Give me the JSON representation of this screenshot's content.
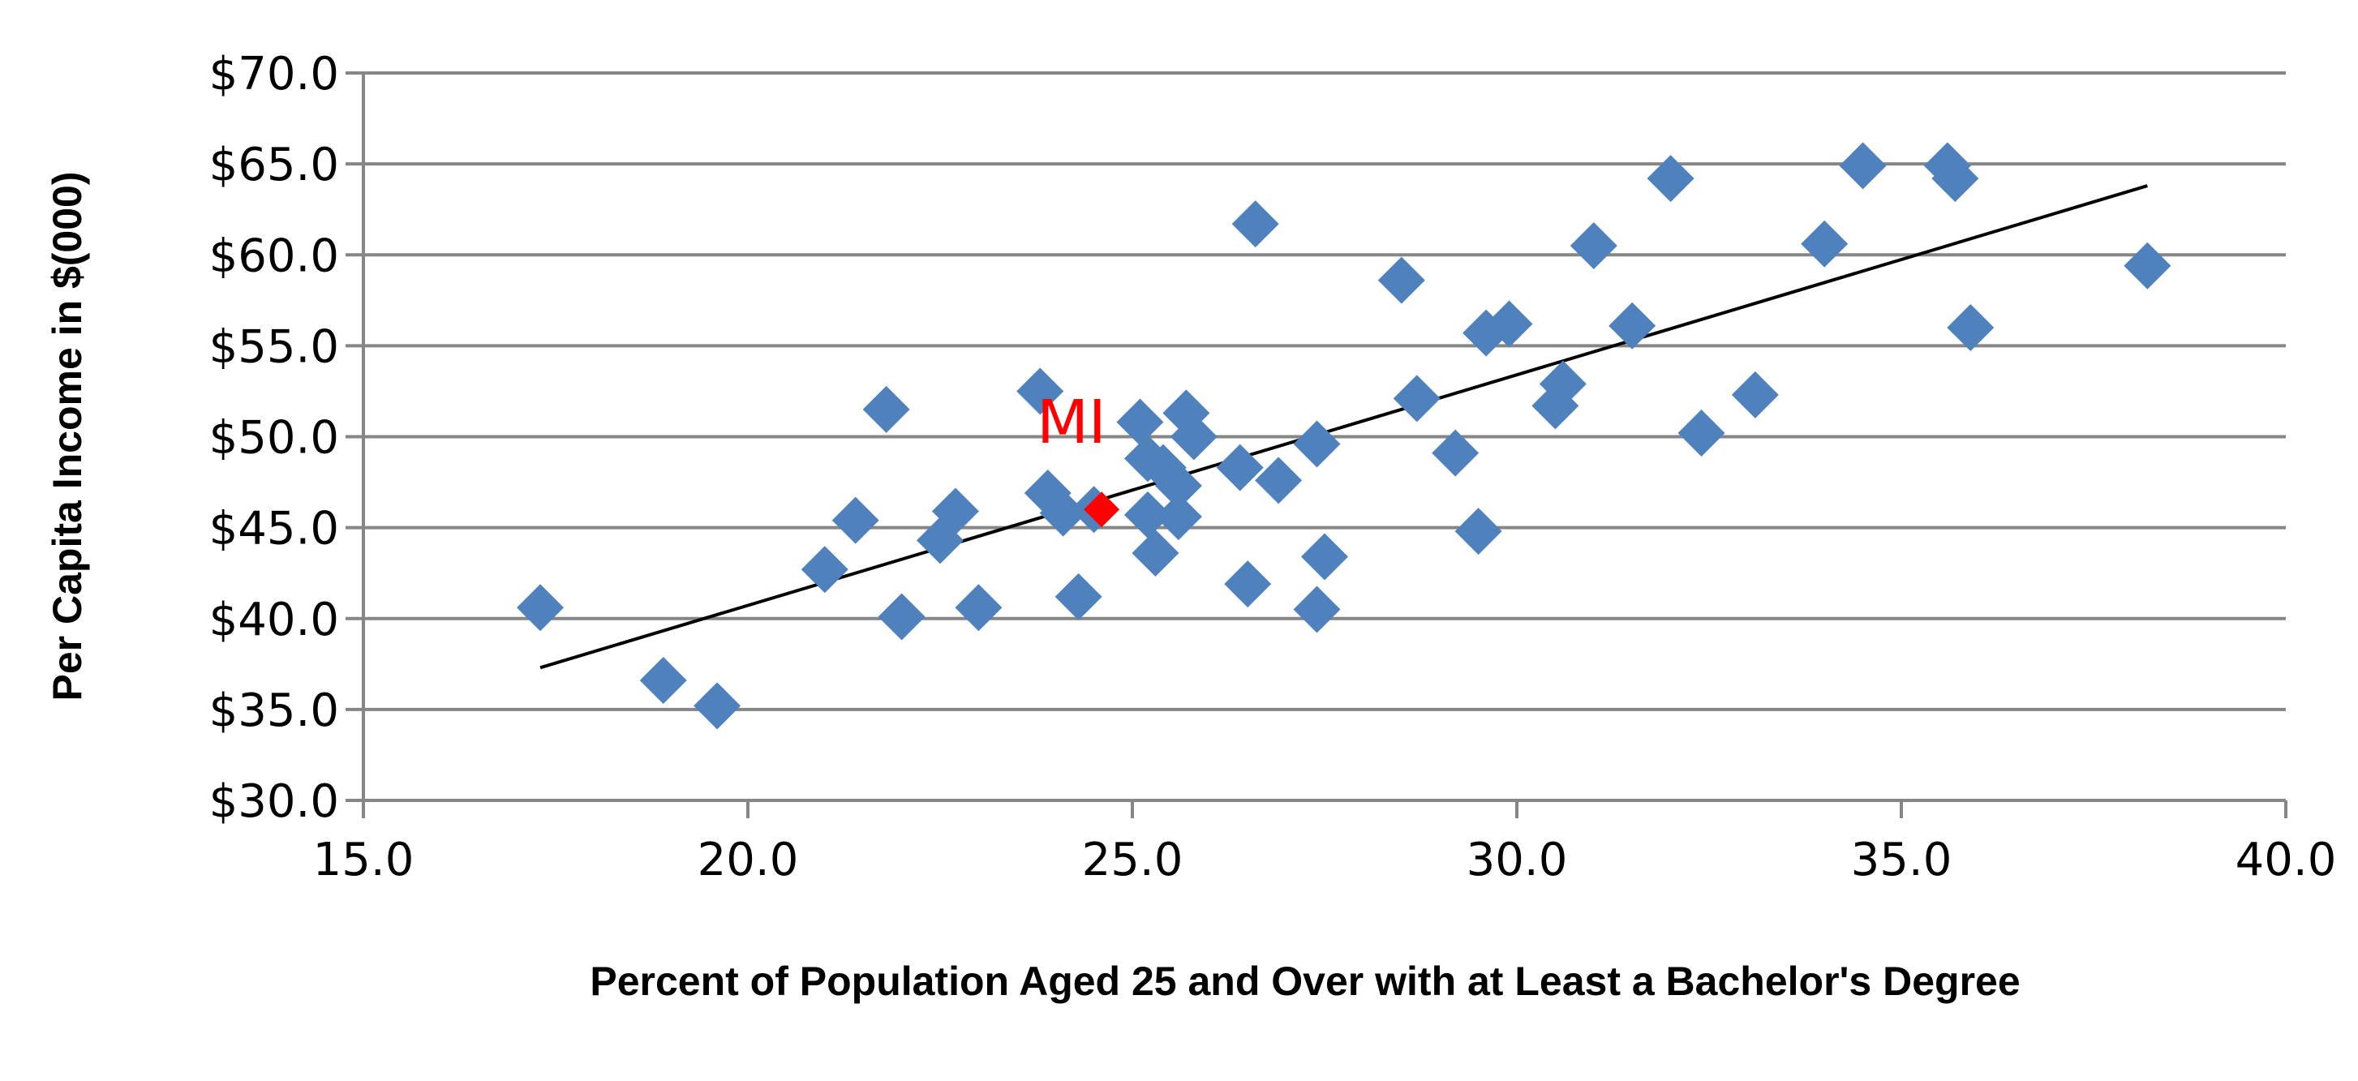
{
  "chart_data": {
    "type": "scatter",
    "xlabel": "Percent of Population Aged 25 and Over with at Least a Bachelor's Degree",
    "ylabel": "Per Capita Income in  $(000)",
    "xlim": [
      15.0,
      40.0
    ],
    "ylim": [
      30.0,
      70.0
    ],
    "x_ticks": [
      15.0,
      20.0,
      25.0,
      30.0,
      35.0,
      40.0
    ],
    "x_tick_labels": [
      "15.0",
      "20.0",
      "25.0",
      "30.0",
      "35.0",
      "40.0"
    ],
    "y_ticks": [
      30.0,
      35.0,
      40.0,
      45.0,
      50.0,
      55.0,
      60.0,
      65.0,
      70.0
    ],
    "y_tick_labels": [
      "$30.0",
      "$35.0",
      "$40.0",
      "$45.0",
      "$50.0",
      "$55.0",
      "$60.0",
      "$65.0",
      "$70.0"
    ],
    "grid": "horizontal",
    "points": [
      [
        17.3,
        40.6
      ],
      [
        18.9,
        36.6
      ],
      [
        19.6,
        35.2
      ],
      [
        21.0,
        42.7
      ],
      [
        21.4,
        45.4
      ],
      [
        21.8,
        51.5
      ],
      [
        22.0,
        40.1
      ],
      [
        22.5,
        44.3
      ],
      [
        22.7,
        45.9
      ],
      [
        23.0,
        40.6
      ],
      [
        23.8,
        52.5
      ],
      [
        23.9,
        46.9
      ],
      [
        24.1,
        45.8
      ],
      [
        24.3,
        41.2
      ],
      [
        24.5,
        46.0
      ],
      [
        25.1,
        50.8
      ],
      [
        25.2,
        45.7
      ],
      [
        25.2,
        48.8
      ],
      [
        25.3,
        43.6
      ],
      [
        25.4,
        48.3
      ],
      [
        25.6,
        45.6
      ],
      [
        25.6,
        47.3
      ],
      [
        25.7,
        51.3
      ],
      [
        25.8,
        50.0
      ],
      [
        26.4,
        48.3
      ],
      [
        26.5,
        41.9
      ],
      [
        26.6,
        61.7
      ],
      [
        26.9,
        47.6
      ],
      [
        27.4,
        40.5
      ],
      [
        27.4,
        49.6
      ],
      [
        27.5,
        43.4
      ],
      [
        28.5,
        58.6
      ],
      [
        28.7,
        52.1
      ],
      [
        29.2,
        49.1
      ],
      [
        29.5,
        44.8
      ],
      [
        29.6,
        55.7
      ],
      [
        29.9,
        56.2
      ],
      [
        30.5,
        51.7
      ],
      [
        30.6,
        52.9
      ],
      [
        31.0,
        60.5
      ],
      [
        31.5,
        56.1
      ],
      [
        32.0,
        64.2
      ],
      [
        32.4,
        50.2
      ],
      [
        33.1,
        52.3
      ],
      [
        34.0,
        60.6
      ],
      [
        34.5,
        64.9
      ],
      [
        35.6,
        64.9
      ],
      [
        35.7,
        64.2
      ],
      [
        35.9,
        56.0
      ],
      [
        38.2,
        59.4
      ]
    ],
    "point_color": "#4f81bd",
    "highlight": {
      "label": "MI",
      "x": 24.6,
      "y": 46.0,
      "color": "#ff0000"
    },
    "trendline": {
      "x": [
        17.3,
        38.2
      ],
      "y": [
        37.3,
        63.8
      ],
      "color": "#000000"
    }
  }
}
